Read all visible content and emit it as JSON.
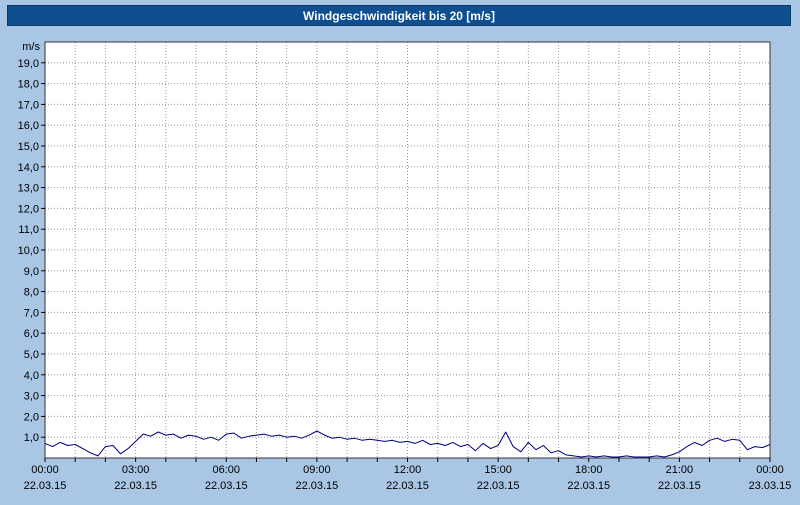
{
  "chart_data": {
    "type": "line",
    "title": "Windgeschwindigkeit bis 20 [m/s]",
    "ylabel": "m/s",
    "xlabel": "",
    "ylim": [
      0,
      20
    ],
    "x_range_hours": [
      0,
      24
    ],
    "x_step_hours": 0.25,
    "grid": true,
    "y_ticks": [
      {
        "v": 19,
        "label": "19,0"
      },
      {
        "v": 18,
        "label": "18,0"
      },
      {
        "v": 17,
        "label": "17,0"
      },
      {
        "v": 16,
        "label": "16,0"
      },
      {
        "v": 15,
        "label": "15,0"
      },
      {
        "v": 14,
        "label": "14,0"
      },
      {
        "v": 13,
        "label": "13,0"
      },
      {
        "v": 12,
        "label": "12,0"
      },
      {
        "v": 11,
        "label": "11,0"
      },
      {
        "v": 10,
        "label": "10,0"
      },
      {
        "v": 9,
        "label": "9,0"
      },
      {
        "v": 8,
        "label": "8,0"
      },
      {
        "v": 7,
        "label": "7,0"
      },
      {
        "v": 6,
        "label": "6,0"
      },
      {
        "v": 5,
        "label": "5,0"
      },
      {
        "v": 4,
        "label": "4,0"
      },
      {
        "v": 3,
        "label": "3,0"
      },
      {
        "v": 2,
        "label": "2,0"
      },
      {
        "v": 1,
        "label": "1,0"
      }
    ],
    "x_ticks": [
      {
        "h": 0,
        "time": "00:00",
        "date": "22.03.15"
      },
      {
        "h": 3,
        "time": "03:00",
        "date": "22.03.15"
      },
      {
        "h": 6,
        "time": "06:00",
        "date": "22.03.15"
      },
      {
        "h": 9,
        "time": "09:00",
        "date": "22.03.15"
      },
      {
        "h": 12,
        "time": "12:00",
        "date": "22.03.15"
      },
      {
        "h": 15,
        "time": "15:00",
        "date": "22.03.15"
      },
      {
        "h": 18,
        "time": "18:00",
        "date": "22.03.15"
      },
      {
        "h": 21,
        "time": "21:00",
        "date": "22.03.15"
      },
      {
        "h": 24,
        "time": "00:00",
        "date": "23.03.15"
      }
    ],
    "series": [
      {
        "name": "Windgeschwindigkeit",
        "color": "#000080",
        "values": [
          0.7,
          0.55,
          0.75,
          0.6,
          0.65,
          0.45,
          0.25,
          0.1,
          0.55,
          0.6,
          0.2,
          0.45,
          0.8,
          1.15,
          1.05,
          1.25,
          1.1,
          1.15,
          0.95,
          1.1,
          1.05,
          0.9,
          1.0,
          0.85,
          1.15,
          1.2,
          0.95,
          1.05,
          1.1,
          1.15,
          1.05,
          1.1,
          1.0,
          1.05,
          0.95,
          1.1,
          1.3,
          1.1,
          0.95,
          1.0,
          0.9,
          0.95,
          0.85,
          0.9,
          0.85,
          0.8,
          0.85,
          0.75,
          0.8,
          0.7,
          0.85,
          0.65,
          0.7,
          0.6,
          0.75,
          0.55,
          0.65,
          0.35,
          0.7,
          0.45,
          0.6,
          1.25,
          0.55,
          0.3,
          0.75,
          0.4,
          0.6,
          0.25,
          0.35,
          0.15,
          0.1,
          0.05,
          0.1,
          0.05,
          0.1,
          0.05,
          0.05,
          0.1,
          0.05,
          0.05,
          0.05,
          0.1,
          0.05,
          0.15,
          0.3,
          0.55,
          0.75,
          0.6,
          0.85,
          0.95,
          0.8,
          0.9,
          0.85,
          0.4,
          0.55,
          0.5,
          0.65
        ]
      }
    ],
    "colors": {
      "background": "#A9C6E4",
      "title_bar": "#0F4E8F",
      "title_text": "#FFFFFF",
      "plot_background": "#FFFFFF",
      "grid": "#999999",
      "axis_frame": "#333333",
      "line": "#000080"
    }
  }
}
